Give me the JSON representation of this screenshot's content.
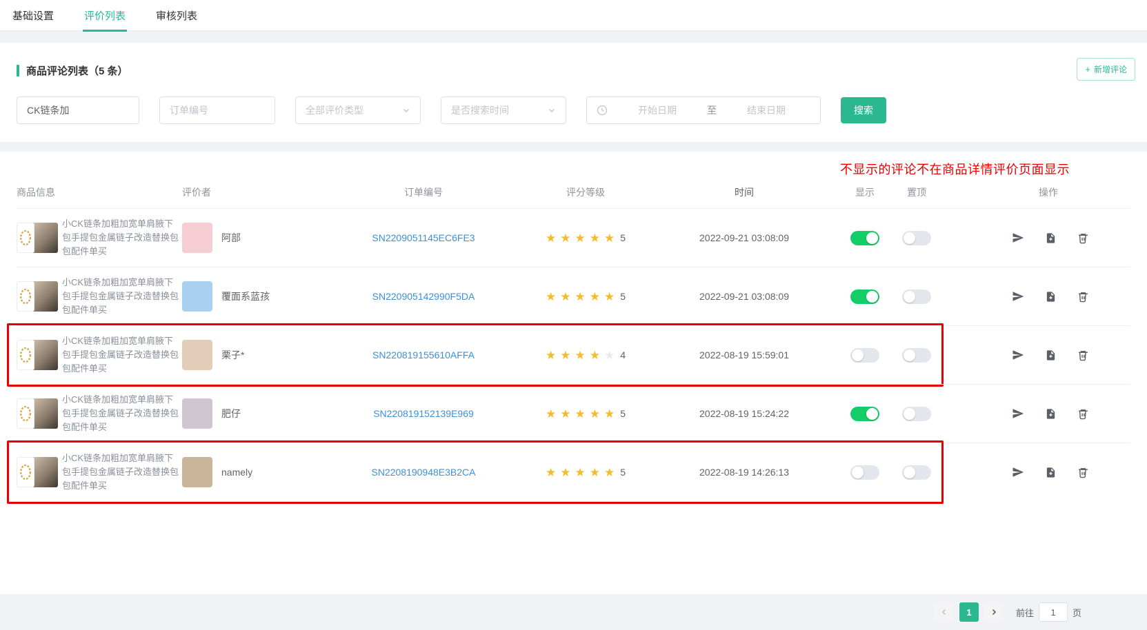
{
  "colors": {
    "accent_teal": "#26b99a",
    "search_button_green": "#2bb88f",
    "toggle_on_green": "#13ce66",
    "order_link_blue": "#3d8fd8",
    "star_gold": "#f7ba2a",
    "annotation_red": "#e60000"
  },
  "tabs": {
    "items": [
      {
        "label": "基础设置",
        "active": false
      },
      {
        "label": "评价列表",
        "active": true
      },
      {
        "label": "审核列表",
        "active": false
      }
    ]
  },
  "list_card": {
    "title": "商品评论列表（5 条）",
    "add_button": {
      "icon": "+",
      "label": "新增评论"
    },
    "filters": {
      "keyword_value": "CK链条加",
      "order_placeholder": "订单编号",
      "type_select_value": "全部评价类型",
      "time_select_value": "是否搜索时间",
      "date_start_placeholder": "开始日期",
      "date_separator": "至",
      "date_end_placeholder": "结束日期",
      "search_button": "搜索"
    }
  },
  "annotation": "不显示的评论不在商品详情评价页面显示",
  "table": {
    "headers": [
      "商品信息",
      "评价者",
      "订单编号",
      "评分等级",
      "时间",
      "显示",
      "置顶",
      "操作"
    ],
    "action_icon_names": [
      "send-icon",
      "file-add-icon",
      "delete-icon"
    ],
    "rows": [
      {
        "product": "小CK链条加粗加宽单肩腋下包手提包金属链子改造替换包包配件单买",
        "reviewer": "阿部",
        "avatar_color": "#f5cdd3",
        "order": "SN2209051145EC6FE3",
        "rating": 5,
        "rating_text": "5",
        "time": "2022-09-21 03:08:09",
        "show_on": true,
        "top_on": false,
        "highlighted": false
      },
      {
        "product": "小CK链条加粗加宽单肩腋下包手提包金属链子改造替换包包配件单买",
        "reviewer": "覆面系蓝孩",
        "avatar_color": "#a9d1ef",
        "order": "SN220905142990F5DA",
        "rating": 5,
        "rating_text": "5",
        "time": "2022-09-21 03:08:09",
        "show_on": true,
        "top_on": false,
        "highlighted": false
      },
      {
        "product": "小CK链条加粗加宽单肩腋下包手提包金属链子改造替换包包配件单买",
        "reviewer": "栗子*",
        "avatar_color": "#e3cdb8",
        "order": "SN220819155610AFFA",
        "rating": 4,
        "rating_text": "4",
        "time": "2022-08-19 15:59:01",
        "show_on": false,
        "top_on": false,
        "highlighted": true
      },
      {
        "product": "小CK链条加粗加宽单肩腋下包手提包金属链子改造替换包包配件单买",
        "reviewer": "肥仔",
        "avatar_color": "#cfc6cf",
        "order": "SN220819152139E969",
        "rating": 5,
        "rating_text": "5",
        "time": "2022-08-19 15:24:22",
        "show_on": true,
        "top_on": false,
        "highlighted": false
      },
      {
        "product": "小CK链条加粗加宽单肩腋下包手提包金属链子改造替换包包配件单买",
        "reviewer": "namely",
        "avatar_color": "#cbb59a",
        "order": "SN2208190948E3B2CA",
        "rating": 5,
        "rating_text": "5",
        "time": "2022-08-19 14:26:13",
        "show_on": false,
        "top_on": false,
        "highlighted": true
      }
    ]
  },
  "pagination": {
    "page": "1",
    "goto_label": "前往",
    "goto_value": "1",
    "page_unit": "页"
  }
}
